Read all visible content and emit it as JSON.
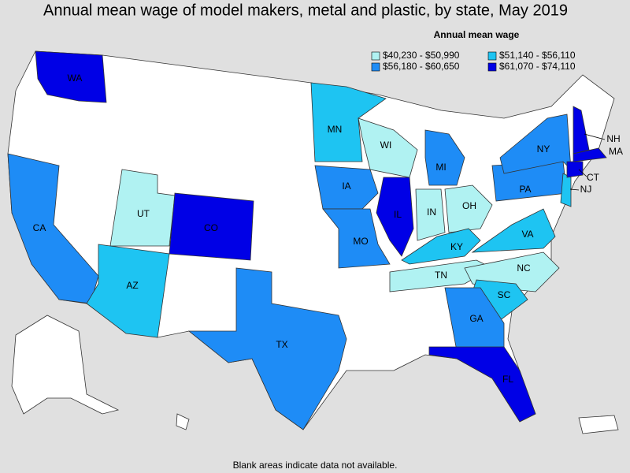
{
  "title": "Annual mean wage of model makers, metal and plastic, by state, May 2019",
  "legend": {
    "title": "Annual mean wage",
    "classes": [
      {
        "label": "$40,230 - $50,990",
        "color": "#b0f2f2"
      },
      {
        "label": "$51,140 - $56,110",
        "color": "#1ec4f2"
      },
      {
        "label": "$56,180 - $60,650",
        "color": "#1e8cf6"
      },
      {
        "label": "$61,070 - $74,110",
        "color": "#0000e6"
      }
    ]
  },
  "states": [
    {
      "label": "WA",
      "class": 3
    },
    {
      "label": "CA",
      "class": 2
    },
    {
      "label": "UT",
      "class": 0
    },
    {
      "label": "CO",
      "class": 3
    },
    {
      "label": "AZ",
      "class": 1
    },
    {
      "label": "TX",
      "class": 2
    },
    {
      "label": "MN",
      "class": 1
    },
    {
      "label": "IA",
      "class": 2
    },
    {
      "label": "MO",
      "class": 2
    },
    {
      "label": "IL",
      "class": 3
    },
    {
      "label": "WI",
      "class": 0
    },
    {
      "label": "MI",
      "class": 2
    },
    {
      "label": "IN",
      "class": 0
    },
    {
      "label": "OH",
      "class": 0
    },
    {
      "label": "KY",
      "class": 1
    },
    {
      "label": "TN",
      "class": 0
    },
    {
      "label": "NC",
      "class": 0
    },
    {
      "label": "VA",
      "class": 1
    },
    {
      "label": "SC",
      "class": 1
    },
    {
      "label": "GA",
      "class": 2
    },
    {
      "label": "FL",
      "class": 3
    },
    {
      "label": "PA",
      "class": 2
    },
    {
      "label": "NY",
      "class": 2
    },
    {
      "label": "NJ",
      "class": 1
    },
    {
      "label": "NH",
      "class": 3
    },
    {
      "label": "MA",
      "class": 3
    },
    {
      "label": "CT",
      "class": 3
    }
  ],
  "note": "Blank areas indicate data not available."
}
